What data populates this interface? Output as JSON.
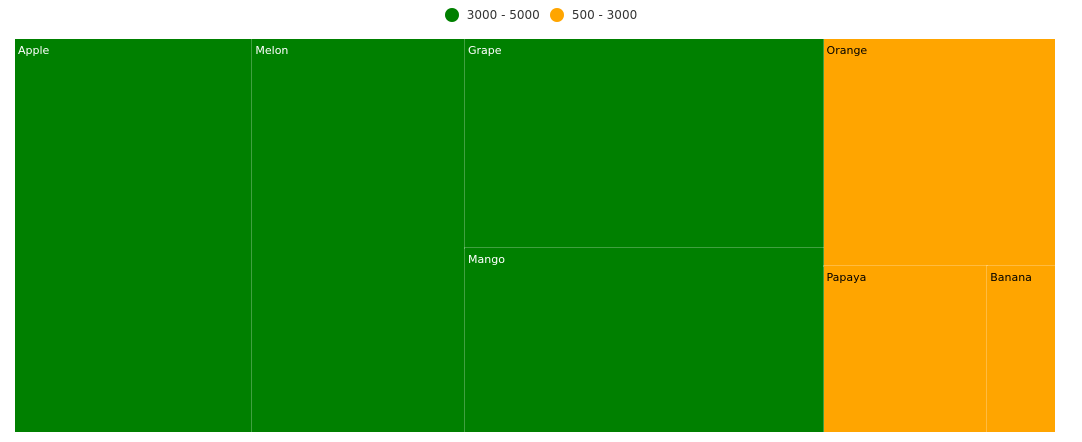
{
  "colors": {
    "high": "#008000",
    "low": "#FFA500",
    "label_on_high": "#ffffff",
    "label_on_low": "#000000"
  },
  "legend": {
    "items": [
      {
        "label": "3000 - 5000",
        "color": "#008000"
      },
      {
        "label": "500 - 3000",
        "color": "#FFA500"
      }
    ]
  },
  "chart_data": {
    "type": "treemap",
    "title": "",
    "legend_position": "top-center",
    "ranges": [
      {
        "label": "3000 - 5000",
        "from": 3000,
        "to": 5000,
        "color": "#008000"
      },
      {
        "label": "500 - 3000",
        "from": 500,
        "to": 3000,
        "color": "#FFA500"
      }
    ],
    "items": [
      {
        "name": "Apple",
        "value": 4800,
        "color": "#008000"
      },
      {
        "name": "Melon",
        "value": 4300,
        "color": "#008000"
      },
      {
        "name": "Grape",
        "value": 3850,
        "color": "#008000"
      },
      {
        "name": "Mango",
        "value": 3400,
        "color": "#008000"
      },
      {
        "name": "Orange",
        "value": 2700,
        "color": "#FFA500"
      },
      {
        "name": "Papaya",
        "value": 1400,
        "color": "#FFA500"
      },
      {
        "name": "Banana",
        "value": 580,
        "color": "#FFA500"
      }
    ]
  }
}
